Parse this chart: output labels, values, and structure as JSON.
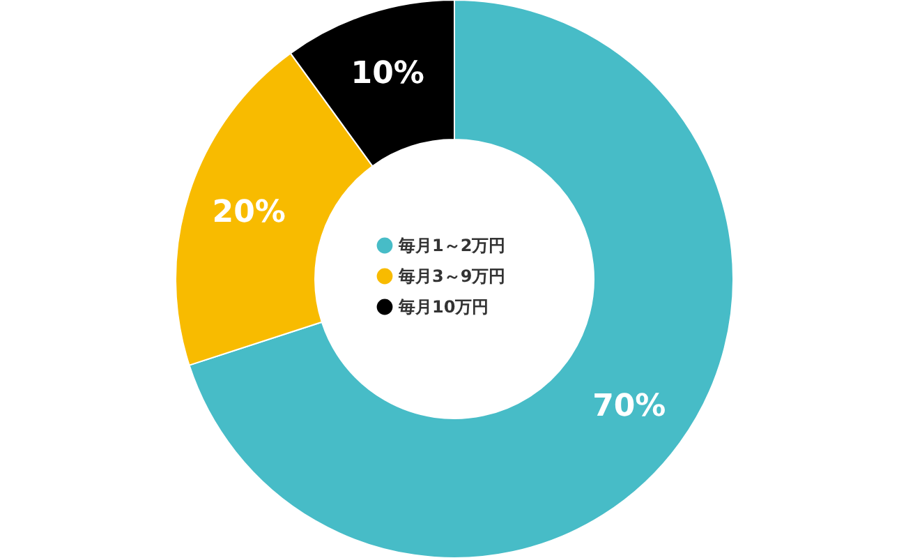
{
  "chart_data": {
    "type": "donut",
    "categories": [
      "毎月1～2万円",
      "毎月3～9万円",
      "毎月10万円"
    ],
    "values": [
      70,
      20,
      10
    ],
    "colors": [
      "#47bcc7",
      "#f8bb00",
      "#000000"
    ],
    "value_labels": [
      "70%",
      "20%",
      "10%"
    ],
    "legend": "center"
  }
}
